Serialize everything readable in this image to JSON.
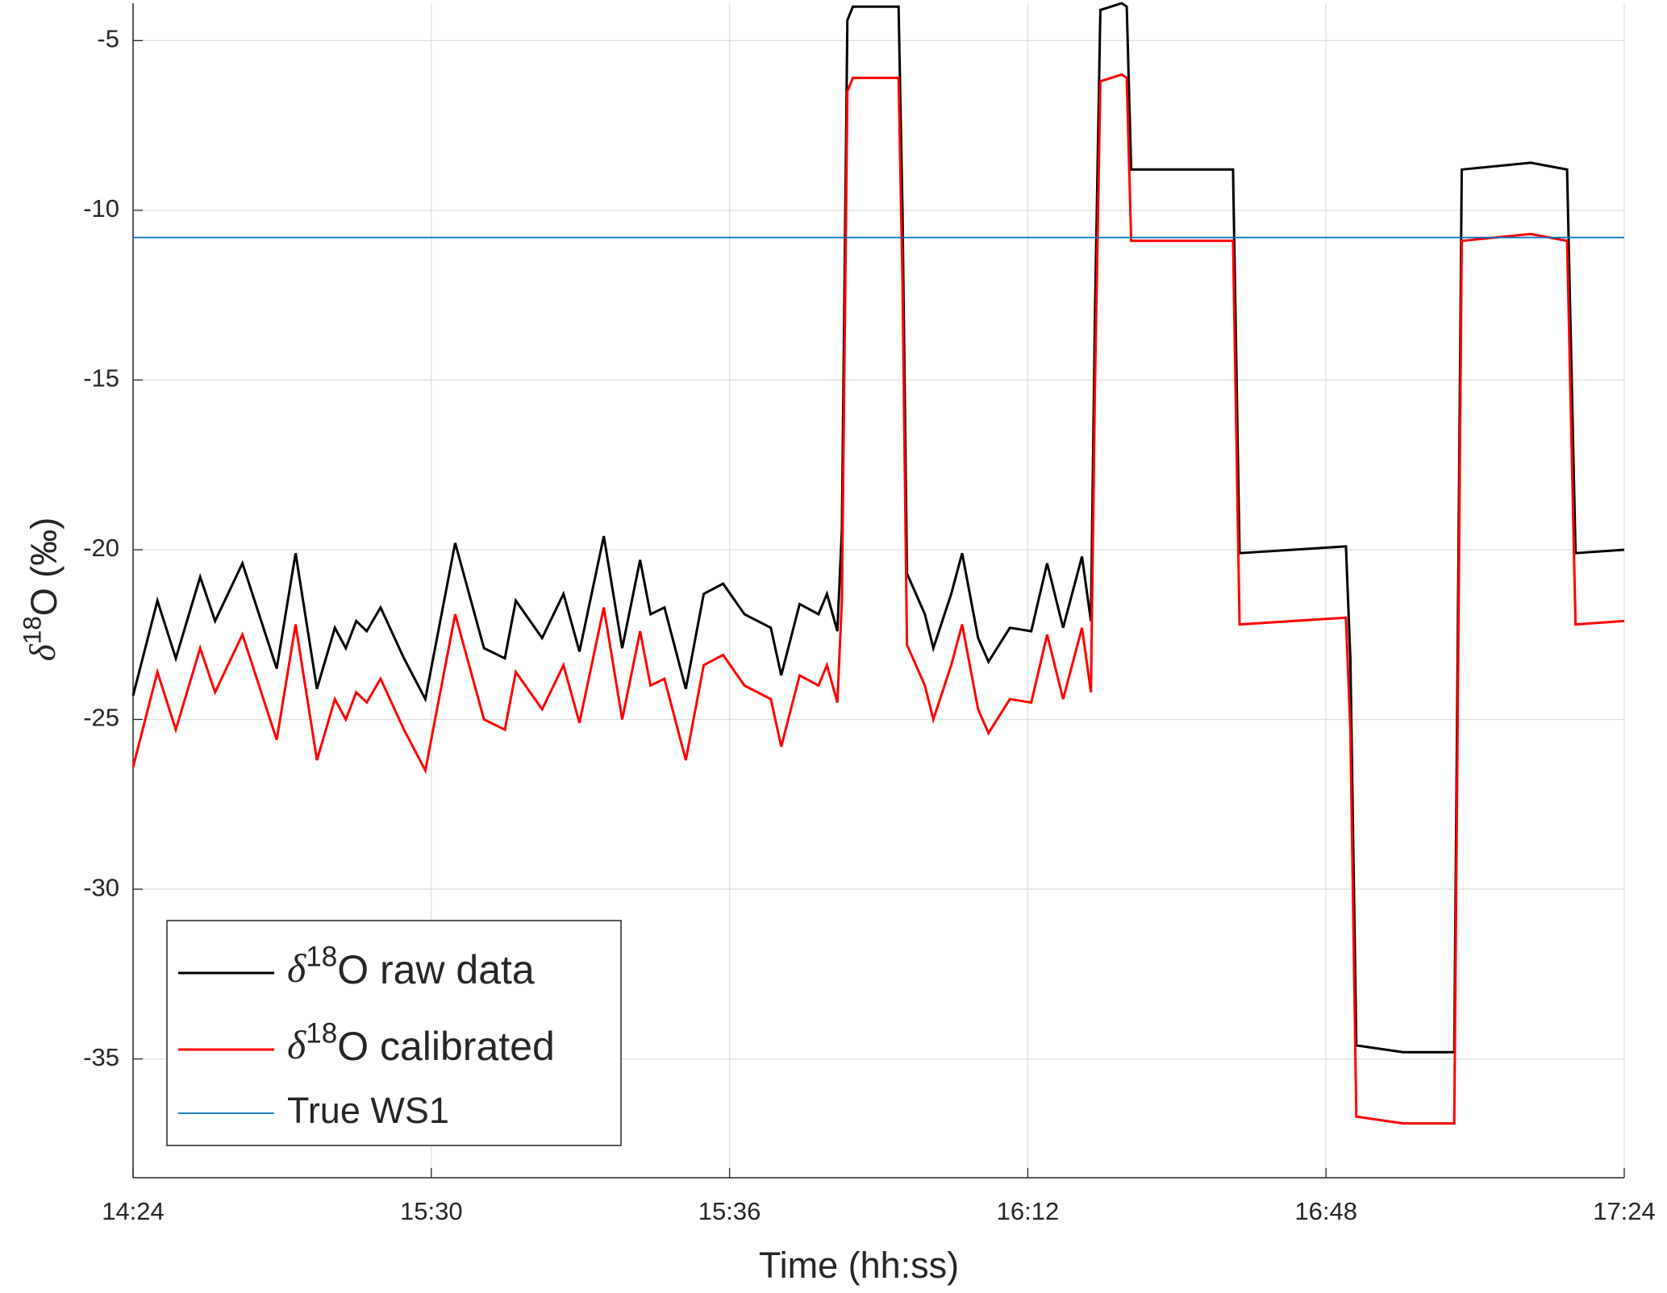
{
  "chart_data": {
    "type": "line",
    "xlabel": "Time (hh:ss)",
    "ylabel": [
      "δ",
      "18",
      "O (‰)"
    ],
    "xlim": [
      0,
      300
    ],
    "xticks": [
      {
        "value": 0,
        "label": "14:24"
      },
      {
        "value": 60,
        "label": "15:30"
      },
      {
        "value": 120,
        "label": "15:36"
      },
      {
        "value": 180,
        "label": "16:12"
      },
      {
        "value": 240,
        "label": "16:48"
      },
      {
        "value": 300,
        "label": "17:24"
      }
    ],
    "ylim": [
      -38.5,
      -3.9
    ],
    "yticks": [
      -35,
      -30,
      -25,
      -20,
      -15,
      -10,
      -5
    ],
    "grid": true,
    "legend": "lower left",
    "series": [
      {
        "name": [
          "δ",
          "18",
          "O raw data"
        ],
        "color": "#000000",
        "x": [
          0,
          4.9,
          8.6,
          13.5,
          16.5,
          22.0,
          28.9,
          32.7,
          37.0,
          40.6,
          42.8,
          44.9,
          47.0,
          49.8,
          54.5,
          58.8,
          64.8,
          70.6,
          74.8,
          77.0,
          82.3,
          86.6,
          89.8,
          94.7,
          98.4,
          102.0,
          104.1,
          106.9,
          111.2,
          114.8,
          118.7,
          123.0,
          128.3,
          130.4,
          134.1,
          137.9,
          139.6,
          141.7,
          142.6,
          143.7,
          144.8,
          154.0,
          154.8,
          155.7,
          159.3,
          161.0,
          164.6,
          166.8,
          170.0,
          172.1,
          176.4,
          180.7,
          183.9,
          187.1,
          190.9,
          192.7,
          193.5,
          194.6,
          198.9,
          199.9,
          200.8,
          221.3,
          222.6,
          244.0,
          244.9,
          246.1,
          255.5,
          265.8,
          267.3,
          281.2,
          288.5,
          290.2,
          300
        ],
        "values": [
          -24.3,
          -21.5,
          -23.2,
          -20.8,
          -22.1,
          -20.4,
          -23.5,
          -20.1,
          -24.1,
          -22.3,
          -22.9,
          -22.1,
          -22.4,
          -21.7,
          -23.2,
          -24.4,
          -19.8,
          -22.9,
          -23.2,
          -21.5,
          -22.6,
          -21.3,
          -23.0,
          -19.6,
          -22.9,
          -20.3,
          -21.9,
          -21.7,
          -24.1,
          -21.3,
          -21.0,
          -21.9,
          -22.3,
          -23.7,
          -21.6,
          -21.9,
          -21.3,
          -22.4,
          -19.4,
          -4.4,
          -4.0,
          -4.0,
          -10.1,
          -20.7,
          -21.9,
          -22.9,
          -21.3,
          -20.1,
          -22.6,
          -23.3,
          -22.3,
          -22.4,
          -20.4,
          -22.3,
          -20.2,
          -22.1,
          -13.2,
          -4.1,
          -3.9,
          -4.0,
          -8.8,
          -8.8,
          -20.1,
          -19.9,
          -23.2,
          -34.6,
          -34.8,
          -34.8,
          -8.8,
          -8.6,
          -8.8,
          -20.1,
          -20.0
        ]
      },
      {
        "name": [
          "δ",
          "18",
          "O calibrated"
        ],
        "color": "#ff0000",
        "x": [
          0,
          4.9,
          8.6,
          13.5,
          16.5,
          22.0,
          28.9,
          32.7,
          37.0,
          40.6,
          42.8,
          44.9,
          47.0,
          49.8,
          54.5,
          58.8,
          64.8,
          70.6,
          74.8,
          77.0,
          82.3,
          86.6,
          89.8,
          94.7,
          98.4,
          102.0,
          104.1,
          106.9,
          111.2,
          114.8,
          118.7,
          123.0,
          128.3,
          130.4,
          134.1,
          137.9,
          139.6,
          141.7,
          142.6,
          143.7,
          144.8,
          154.0,
          154.8,
          155.7,
          159.3,
          161.0,
          164.6,
          166.8,
          170.0,
          172.1,
          176.4,
          180.7,
          183.9,
          187.1,
          190.9,
          192.7,
          193.5,
          194.6,
          198.9,
          199.9,
          200.8,
          221.3,
          222.6,
          244.0,
          244.9,
          246.1,
          255.5,
          265.8,
          267.3,
          281.2,
          288.5,
          290.2,
          300
        ],
        "values": [
          -26.4,
          -23.6,
          -25.3,
          -22.9,
          -24.2,
          -22.5,
          -25.6,
          -22.2,
          -26.2,
          -24.4,
          -25.0,
          -24.2,
          -24.5,
          -23.8,
          -25.3,
          -26.5,
          -21.9,
          -25.0,
          -25.3,
          -23.6,
          -24.7,
          -23.4,
          -25.1,
          -21.7,
          -25.0,
          -22.4,
          -24.0,
          -23.8,
          -26.2,
          -23.4,
          -23.1,
          -24.0,
          -24.4,
          -25.8,
          -23.7,
          -24.0,
          -23.4,
          -24.5,
          -21.5,
          -6.5,
          -6.1,
          -6.1,
          -12.2,
          -22.8,
          -24.0,
          -25.0,
          -23.4,
          -22.2,
          -24.7,
          -25.4,
          -24.4,
          -24.5,
          -22.5,
          -24.4,
          -22.3,
          -24.2,
          -15.3,
          -6.2,
          -6.0,
          -6.1,
          -10.9,
          -10.9,
          -22.2,
          -22.0,
          -25.3,
          -36.7,
          -36.9,
          -36.9,
          -10.9,
          -10.7,
          -10.9,
          -22.2,
          -22.1
        ]
      },
      {
        "name": [
          "True WS1"
        ],
        "color": "#0072bd",
        "x": [
          0,
          300
        ],
        "values": [
          -10.8,
          -10.8
        ]
      }
    ]
  }
}
